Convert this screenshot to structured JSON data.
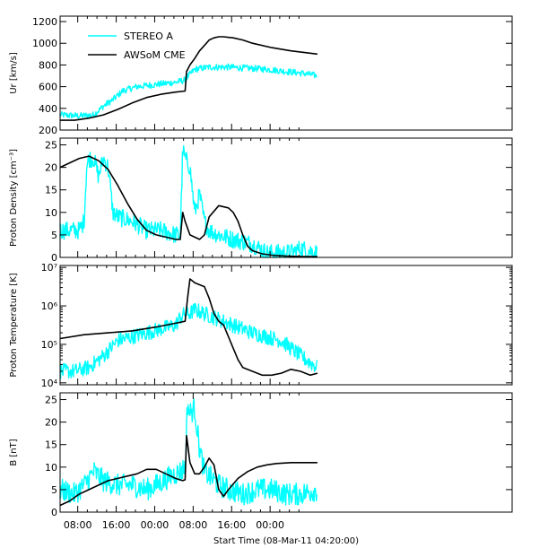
{
  "chart_data": {
    "type": "line",
    "xlabel": "Start Time (08-Mar-11 04:20:00)",
    "x_unit": "hours since start",
    "xlim": [
      0,
      94
    ],
    "xticks": [
      {
        "x": 3.67,
        "label": "08:00"
      },
      {
        "x": 11.67,
        "label": "16:00"
      },
      {
        "x": 19.67,
        "label": "00:00"
      },
      {
        "x": 27.67,
        "label": "08:00"
      },
      {
        "x": 35.67,
        "label": "16:00"
      },
      {
        "x": 43.67,
        "label": "00:00"
      }
    ],
    "legend": {
      "placement": "top-left",
      "entries": [
        {
          "name": "STEREO A",
          "color": "#00ffff"
        },
        {
          "name": "AWSoM CME",
          "color": "#000000"
        }
      ]
    },
    "panels": [
      {
        "id": "ur",
        "ylabel": "Ur [km/s]",
        "scale": "linear",
        "ylim": [
          200,
          1250
        ],
        "yticks": [
          {
            "v": 200,
            "label": "200"
          },
          {
            "v": 400,
            "label": "400"
          },
          {
            "v": 600,
            "label": "600"
          },
          {
            "v": 800,
            "label": "800"
          },
          {
            "v": 1000,
            "label": "1000"
          },
          {
            "v": 1200,
            "label": "1200"
          }
        ],
        "series": [
          {
            "name": "STEREO A",
            "color": "#00ffff",
            "noise": 30,
            "x": [
              0,
              4,
              7,
              9,
              11,
              13,
              16,
              20,
              24,
              26,
              26.3,
              28,
              31,
              35,
              39,
              43,
              47,
              51,
              53.5
            ],
            "y": [
              340,
              330,
              340,
              420,
              480,
              560,
              600,
              620,
              640,
              660,
              680,
              760,
              780,
              780,
              770,
              760,
              740,
              720,
              700
            ]
          },
          {
            "name": "AWSoM CME",
            "color": "#000000",
            "noise": 0,
            "x": [
              0,
              3,
              6,
              9,
              12,
              15,
              18,
              21,
              24,
              26,
              26.3,
              27,
              28,
              29,
              30,
              31,
              32,
              33,
              34,
              36,
              38,
              40,
              44,
              48,
              53.5
            ],
            "y": [
              290,
              290,
              310,
              340,
              390,
              450,
              500,
              530,
              550,
              560,
              740,
              800,
              860,
              930,
              980,
              1030,
              1050,
              1060,
              1060,
              1050,
              1030,
              1000,
              960,
              930,
              900
            ]
          }
        ]
      },
      {
        "id": "density",
        "ylabel": "Proton Density [cm⁻³]",
        "scale": "linear",
        "ylim": [
          0,
          26.5
        ],
        "yticks": [
          {
            "v": 0,
            "label": "0"
          },
          {
            "v": 5,
            "label": "5"
          },
          {
            "v": 10,
            "label": "10"
          },
          {
            "v": 15,
            "label": "15"
          },
          {
            "v": 20,
            "label": "20"
          },
          {
            "v": 25,
            "label": "25"
          }
        ],
        "series": [
          {
            "name": "STEREO A",
            "color": "#00ffff",
            "noise": 2,
            "x": [
              0,
              2,
              4,
              5,
              5.5,
              6,
              7,
              8,
              9,
              10,
              11,
              12,
              15,
              18,
              21,
              24,
              25,
              25.5,
              26,
              27,
              28,
              29,
              30,
              31,
              33,
              36,
              40,
              43,
              45,
              48,
              50,
              53.5
            ],
            "y": [
              6,
              6,
              6,
              8,
              20,
              22,
              22,
              18,
              22,
              20,
              10,
              9,
              8,
              6,
              6,
              5,
              5,
              24,
              22,
              20,
              10,
              14,
              8,
              6,
              5,
              4,
              3,
              1,
              1,
              1,
              2,
              1
            ]
          },
          {
            "name": "AWSoM CME",
            "color": "#000000",
            "noise": 0,
            "x": [
              0,
              2,
              4,
              6,
              8,
              10,
              12,
              14,
              16,
              18,
              20,
              22,
              24,
              25,
              25.5,
              26,
              27,
              28,
              29,
              30,
              31,
              33,
              35,
              36,
              37,
              38,
              39,
              40,
              42,
              44,
              47,
              50,
              53.5
            ],
            "y": [
              20,
              21,
              22,
              22.5,
              21.5,
              19.5,
              16,
              12,
              8.5,
              6,
              5,
              4.5,
              4,
              4,
              10,
              8,
              5,
              4.5,
              4,
              5,
              9,
              11.5,
              11,
              10,
              8,
              5,
              2.5,
              1.5,
              0.8,
              0.5,
              0.3,
              0.2,
              0.2
            ]
          }
        ]
      },
      {
        "id": "temperature",
        "ylabel": "Proton Temperature [K]",
        "scale": "log",
        "ylim_log10": [
          3.95,
          7.05
        ],
        "yticks": [
          {
            "v": 4,
            "label": "10⁴"
          },
          {
            "v": 5,
            "label": "10⁵"
          },
          {
            "v": 6,
            "label": "10⁶"
          },
          {
            "v": 7,
            "label": "10⁷"
          }
        ],
        "series": [
          {
            "name": "STEREO A",
            "color": "#00ffff",
            "noise": 0.2,
            "x": [
              0,
              3,
              6,
              9,
              12,
              15,
              18,
              21,
              24,
              25,
              26,
              27,
              28,
              30,
              32,
              34,
              36,
              38,
              40,
              43,
              46,
              50,
              53.5
            ],
            "y": [
              4.3,
              4.3,
              4.4,
              4.7,
              5.1,
              5.2,
              5.3,
              5.4,
              5.5,
              5.7,
              5.8,
              5.8,
              5.9,
              5.8,
              5.7,
              5.6,
              5.5,
              5.4,
              5.3,
              5.2,
              5.1,
              4.7,
              4.4
            ]
          },
          {
            "name": "AWSoM CME",
            "color": "#000000",
            "noise": 0,
            "x": [
              0,
              5,
              10,
              15,
              20,
              24,
              26,
              26.5,
              27,
              28,
              29,
              30,
              31,
              32,
              33,
              34,
              35,
              36,
              37,
              38,
              40,
              42,
              44,
              46,
              48,
              50,
              51,
              52,
              53.5
            ],
            "y": [
              5.15,
              5.25,
              5.3,
              5.35,
              5.45,
              5.55,
              5.6,
              6.2,
              6.7,
              6.6,
              6.55,
              6.5,
              6.2,
              5.8,
              5.6,
              5.5,
              5.2,
              4.9,
              4.6,
              4.4,
              4.3,
              4.2,
              4.2,
              4.25,
              4.35,
              4.3,
              4.25,
              4.2,
              4.25
            ]
          }
        ]
      },
      {
        "id": "field",
        "ylabel": "B [nT]",
        "scale": "linear",
        "ylim": [
          0,
          26.5
        ],
        "yticks": [
          {
            "v": 0,
            "label": "0"
          },
          {
            "v": 5,
            "label": "5"
          },
          {
            "v": 10,
            "label": "10"
          },
          {
            "v": 15,
            "label": "15"
          },
          {
            "v": 20,
            "label": "20"
          },
          {
            "v": 25,
            "label": "25"
          }
        ],
        "series": [
          {
            "name": "STEREO A",
            "color": "#00ffff",
            "noise": 2.5,
            "x": [
              0,
              3,
              5,
              7,
              9,
              12,
              15,
              18,
              20,
              23,
              25,
              26,
              26.5,
              27,
              28,
              29,
              30,
              31,
              33,
              35,
              38,
              41,
              44,
              47,
              50,
              53.5
            ],
            "y": [
              5,
              4,
              6,
              9,
              7,
              6,
              6,
              5,
              6,
              8,
              9,
              10,
              24,
              22,
              23,
              14,
              9,
              8,
              6,
              5,
              4,
              5,
              5,
              4,
              4,
              5
            ]
          },
          {
            "name": "AWSoM CME",
            "color": "#000000",
            "noise": 0,
            "x": [
              0,
              2,
              4,
              6,
              8,
              10,
              12,
              14,
              16,
              18,
              20,
              22,
              24,
              25.5,
              26,
              26.3,
              27,
              28,
              29,
              30,
              31,
              32,
              33,
              34,
              35,
              37,
              39,
              41,
              43,
              45,
              48,
              53.5
            ],
            "y": [
              1.5,
              2.5,
              4,
              5,
              6,
              7,
              7.5,
              8,
              8.5,
              9.5,
              9.5,
              8.5,
              7.5,
              7,
              7.2,
              17,
              11,
              8.5,
              8.5,
              10,
              12,
              10.5,
              5,
              3.5,
              5,
              7.5,
              9,
              10,
              10.5,
              10.8,
              11,
              11
            ]
          }
        ]
      }
    ]
  }
}
